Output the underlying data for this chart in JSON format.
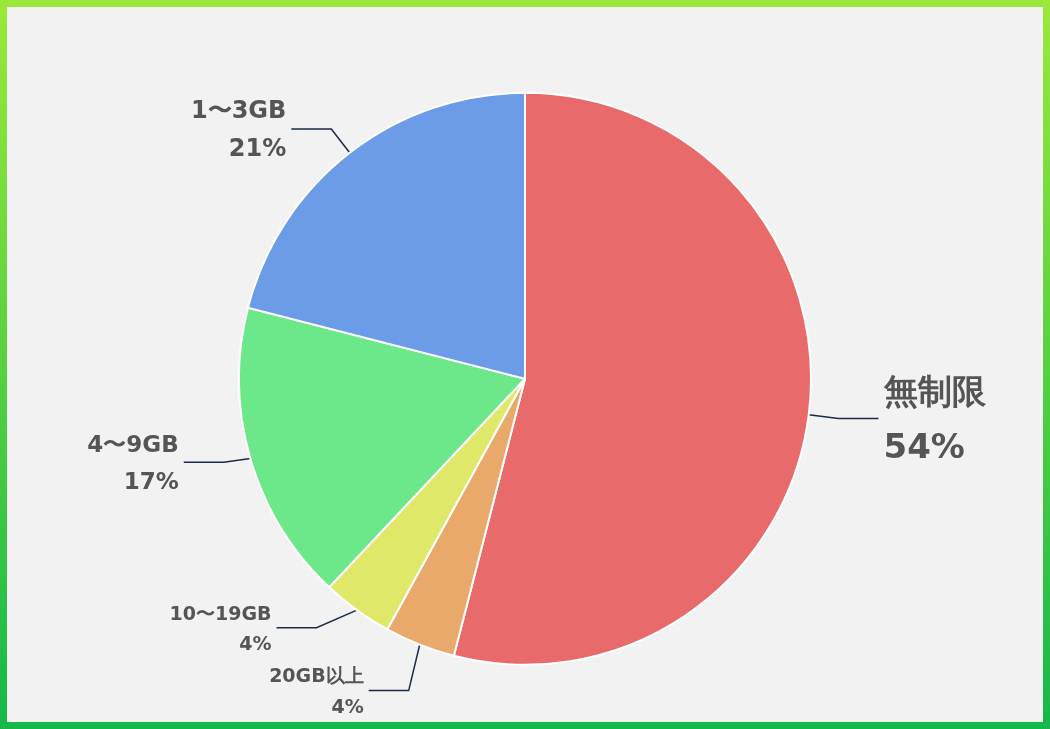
{
  "chart_data": {
    "type": "pie",
    "categories": [
      "無制限",
      "20GB以上",
      "10〜19GB",
      "4〜9GB",
      "1〜3GB"
    ],
    "values": [
      54,
      4,
      4,
      17,
      21
    ],
    "value_labels": [
      "54%",
      "4%",
      "4%",
      "17%",
      "21%"
    ],
    "colors": [
      "#e86a6a",
      "#e8a96a",
      "#e0e86a",
      "#6ce88a",
      "#6c9be8"
    ],
    "legend": false
  }
}
